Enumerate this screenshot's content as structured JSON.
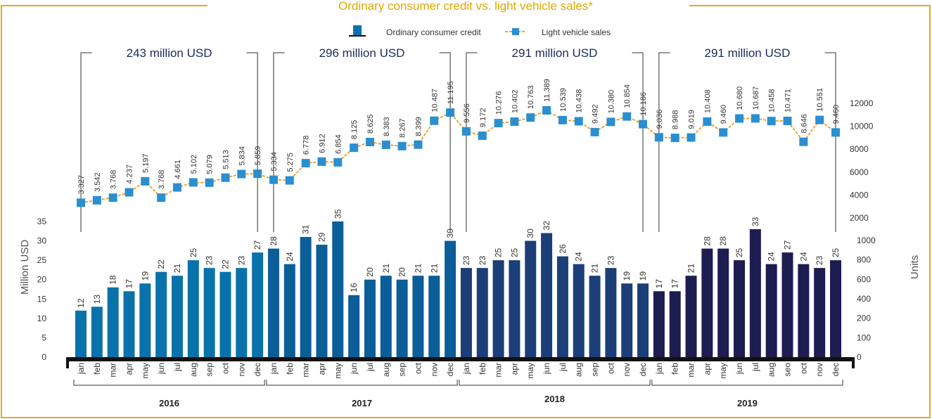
{
  "chart_data": {
    "type": "bar",
    "title": "Ordinary consumer credit vs. light vehicle sales*",
    "ylabel": "Million USD",
    "y2label": "Units",
    "categories": [
      "jan",
      "feb",
      "mar",
      "apr",
      "may",
      "jun",
      "jul",
      "aug",
      "sep",
      "oct",
      "nov",
      "dec",
      "jan",
      "feb",
      "mar",
      "apr",
      "may",
      "jun",
      "jul",
      "aug",
      "sep",
      "oct",
      "nov",
      "dec",
      "jan",
      "feb",
      "mar",
      "apr",
      "may",
      "jun",
      "jul",
      "aug",
      "sep",
      "oct",
      "nov",
      "dec",
      "jan",
      "feb",
      "mar",
      "apr",
      "may",
      "jun",
      "jul",
      "aug",
      "seo",
      "oct",
      "nov",
      "dec"
    ],
    "years": [
      {
        "label": "2016",
        "color": "#0a72ab"
      },
      {
        "label": "2017",
        "color": "#0b5e98"
      },
      {
        "label": "2018",
        "color": "#1b3f78"
      },
      {
        "label": "2019",
        "color": "#1d1d52"
      }
    ],
    "annotations": [
      "243 million USD",
      "296  million USD",
      "291  million USD",
      "291  million USD"
    ],
    "series": [
      {
        "name": "Ordinary consumer credit",
        "color": "#0a72ab",
        "values": [
          12,
          13,
          18,
          17,
          19,
          22,
          21,
          25,
          23,
          22,
          23,
          27,
          28,
          24,
          31,
          29,
          35,
          16,
          20,
          21,
          20,
          21,
          21,
          30,
          23,
          23,
          25,
          25,
          30,
          32,
          26,
          24,
          21,
          23,
          19,
          19,
          17,
          17,
          21,
          28,
          28,
          25,
          33,
          24,
          27,
          24,
          23,
          25
        ]
      },
      {
        "name": "Light vehicle sales",
        "type": "line",
        "axis": "y2",
        "color": "#f0a030",
        "marker_color": "#2a8fd0",
        "values": [
          3327,
          3542,
          3768,
          4237,
          5197,
          3768,
          4661,
          5102,
          5079,
          5513,
          5834,
          5859,
          5334,
          5275,
          6778,
          6912,
          6854,
          8125,
          8625,
          8383,
          8267,
          8399,
          10487,
          11195,
          9556,
          9172,
          10276,
          10402,
          10763,
          11389,
          10539,
          10438,
          9492,
          10380,
          10854,
          10186,
          9036,
          8988,
          9019,
          10408,
          9460,
          10680,
          10687,
          10458,
          10471,
          8646,
          10551,
          9460
        ],
        "value_labels": [
          "3.327",
          "3.542",
          "3.768",
          "4.237",
          "5.197",
          "3.768",
          "4.661",
          "5.102",
          "5.079",
          "5.513",
          "5.834",
          "5.859",
          "5.334",
          "5.275",
          "6.778",
          "6.912",
          "6.854",
          "8.125",
          "8.625",
          "8.383",
          "8.267",
          "8.399",
          "10.487",
          "11.195",
          "9.556",
          "9.172",
          "10.276",
          "10.402",
          "10.763",
          "11.389",
          "10.539",
          "10.438",
          "9.492",
          "10.380",
          "10.854",
          "10.186",
          "9.036",
          "8.988",
          "9.019",
          "10.408",
          "9.460",
          "10.680",
          "10.687",
          "10.458",
          "10.471",
          "8.646",
          "10.551",
          "9.460"
        ]
      }
    ],
    "ylim": [
      0,
      35
    ],
    "yticks": [
      0,
      5,
      10,
      15,
      20,
      25,
      30,
      35
    ],
    "y2lim": [
      2000,
      12000
    ],
    "y2ticks": [
      2000,
      4000,
      6000,
      8000,
      10000,
      12000
    ],
    "y2ticks_lower": [
      0,
      100,
      200,
      400,
      600,
      800,
      1000
    ]
  }
}
